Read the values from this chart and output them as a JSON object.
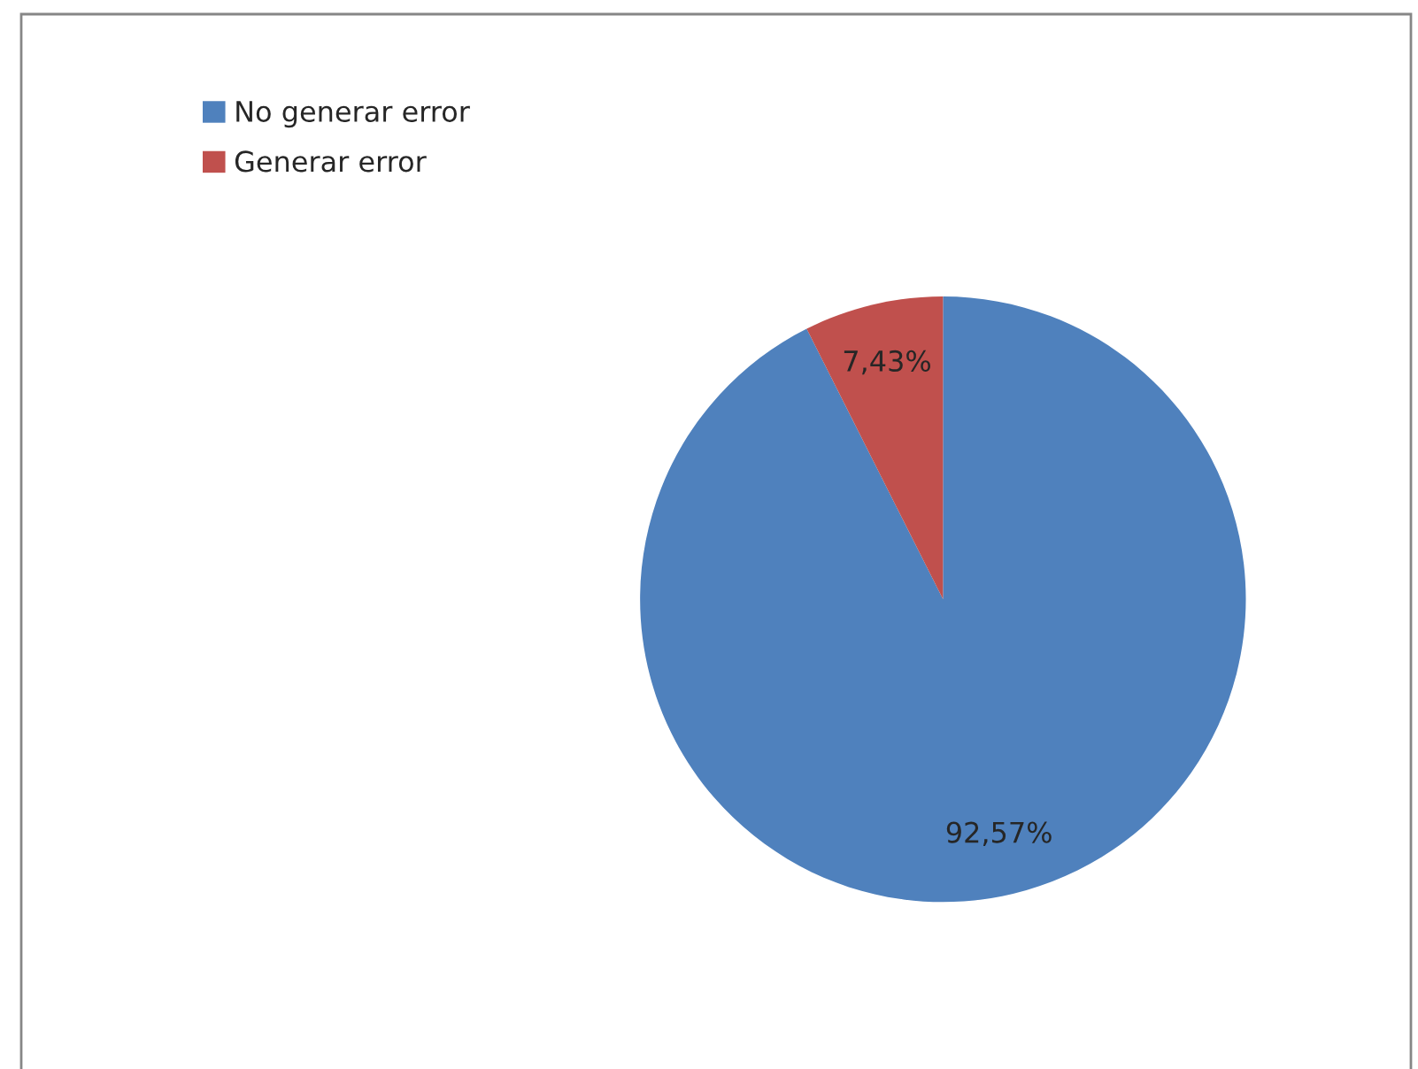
{
  "chart_data": {
    "type": "pie",
    "categories": [
      "No generar error",
      "Generar error"
    ],
    "values": [
      92.57,
      7.43
    ],
    "colors": [
      "#4f81bd",
      "#c0504d"
    ],
    "value_labels": [
      "92,57%",
      "7,43%"
    ],
    "legend": "top left"
  }
}
